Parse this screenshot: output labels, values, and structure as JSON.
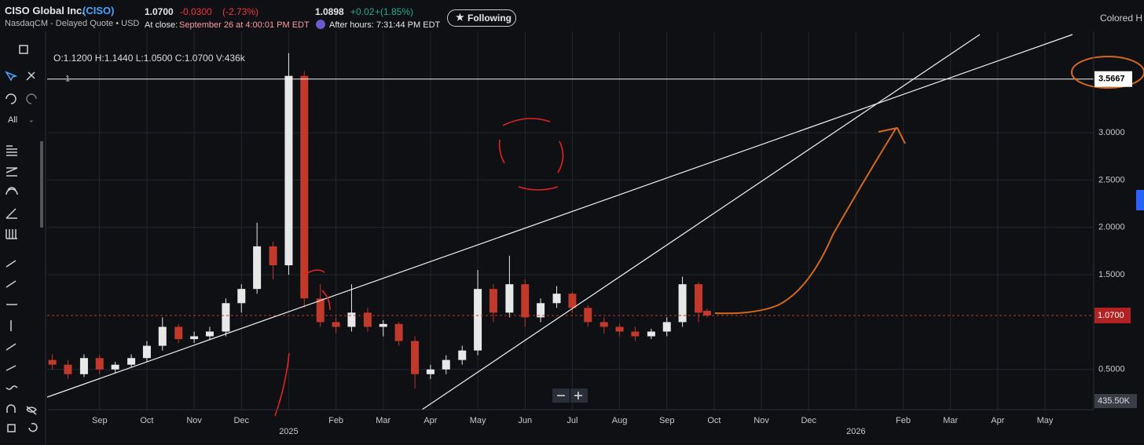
{
  "header": {
    "name": "CISO Global Inc.",
    "ticker": "(CISO)",
    "exchange": "NasdaqCM - Delayed Quote • USD",
    "price": "1.0700",
    "change": "-0.0300",
    "change_pct": "(-2.73%)",
    "close_label": "At close:",
    "close_time": "September 26 at 4:00:01 PM EDT",
    "ah_price": "1.0898",
    "ah_change": "+0.02",
    "ah_change_pct": "+(1.85%)",
    "ah_label": "After hours: 7:31:44 PM EDT",
    "follow": "Following",
    "colored": "Colored H"
  },
  "toolbar": {
    "all": "All"
  },
  "chart_data": {
    "type": "candlestick",
    "ohlc_label": "O:1.1200  H:1.1440  L:1.0500  C:1.0700  V:436k",
    "x": [
      -1,
      -0.67,
      -0.33,
      0,
      0.33,
      0.67,
      1,
      1.33,
      1.67,
      2,
      2.33,
      2.67,
      3,
      3.33,
      3.67,
      4,
      4.33,
      4.67,
      5,
      5.33,
      5.67,
      6,
      6.33,
      6.67,
      7,
      7.33,
      7.67,
      8,
      8.33,
      8.67,
      9,
      9.33,
      9.67,
      10,
      10.33,
      10.67,
      11,
      11.33,
      11.67,
      12,
      12.33,
      12.67,
      12.85
    ],
    "open": [
      0.6,
      0.55,
      0.45,
      0.62,
      0.5,
      0.55,
      0.62,
      0.75,
      0.95,
      0.82,
      0.85,
      0.9,
      1.2,
      1.35,
      1.8,
      1.6,
      3.6,
      1.25,
      1.0,
      0.95,
      1.1,
      0.95,
      0.98,
      0.8,
      0.45,
      0.5,
      0.6,
      0.7,
      1.35,
      1.1,
      1.4,
      1.05,
      1.2,
      1.3,
      1.15,
      1.0,
      0.95,
      0.9,
      0.85,
      0.9,
      1.0,
      1.4,
      1.12
    ],
    "high": [
      0.66,
      0.6,
      0.66,
      0.65,
      0.58,
      0.66,
      0.8,
      1.05,
      0.98,
      0.9,
      0.95,
      1.25,
      1.4,
      2.05,
      1.85,
      3.84,
      3.65,
      1.4,
      1.05,
      1.4,
      1.15,
      1.02,
      1.0,
      0.85,
      0.55,
      0.65,
      0.75,
      1.55,
      1.4,
      1.7,
      1.45,
      1.25,
      1.38,
      1.32,
      1.18,
      1.05,
      0.98,
      0.95,
      0.93,
      1.05,
      1.48,
      1.42,
      1.144
    ],
    "low": [
      0.5,
      0.4,
      0.42,
      0.45,
      0.46,
      0.52,
      0.58,
      0.7,
      0.78,
      0.78,
      0.82,
      0.85,
      1.1,
      1.3,
      1.45,
      1.5,
      1.15,
      0.95,
      0.88,
      0.9,
      0.9,
      0.85,
      0.75,
      0.3,
      0.4,
      0.45,
      0.55,
      0.65,
      1.0,
      1.05,
      0.95,
      1.0,
      1.15,
      1.1,
      0.95,
      0.88,
      0.85,
      0.8,
      0.82,
      0.85,
      0.95,
      1.0,
      1.05
    ],
    "close": [
      0.55,
      0.45,
      0.62,
      0.5,
      0.55,
      0.62,
      0.75,
      0.95,
      0.82,
      0.85,
      0.9,
      1.2,
      1.35,
      1.8,
      1.6,
      3.6,
      1.25,
      1.0,
      0.95,
      1.1,
      0.95,
      0.98,
      0.8,
      0.45,
      0.5,
      0.6,
      0.7,
      1.35,
      1.1,
      1.4,
      1.05,
      1.2,
      1.3,
      1.15,
      1.0,
      0.95,
      0.9,
      0.85,
      0.9,
      1.0,
      1.4,
      1.1,
      1.07
    ],
    "up_color": "#e8e8e8",
    "down_color": "#c0392b",
    "xlim": [
      -1.11,
      21.03
    ],
    "xticks": [
      {
        "value": 0,
        "label": "Sep"
      },
      {
        "value": 1,
        "label": "Oct"
      },
      {
        "value": 2,
        "label": "Nov"
      },
      {
        "value": 3,
        "label": "Dec"
      },
      {
        "value": 4,
        "label": "2025"
      },
      {
        "value": 5,
        "label": "Feb"
      },
      {
        "value": 6,
        "label": "Mar"
      },
      {
        "value": 7,
        "label": "Apr"
      },
      {
        "value": 8,
        "label": "May"
      },
      {
        "value": 9,
        "label": "Jun"
      },
      {
        "value": 10,
        "label": "Jul"
      },
      {
        "value": 11,
        "label": "Aug"
      },
      {
        "value": 12,
        "label": "Sep"
      },
      {
        "value": 13,
        "label": "Oct"
      },
      {
        "value": 14,
        "label": "Nov"
      },
      {
        "value": 15,
        "label": "Dec"
      },
      {
        "value": 16,
        "label": "2026"
      },
      {
        "value": 17,
        "label": "Feb"
      },
      {
        "value": 18,
        "label": "Mar"
      },
      {
        "value": 19,
        "label": "Apr"
      },
      {
        "value": 20,
        "label": "May"
      }
    ],
    "ylim": [
      0.075,
      4.07
    ],
    "yticks": [
      {
        "value": 0.5,
        "label": "0.5000"
      },
      {
        "value": 1.5,
        "label": "1.5000"
      },
      {
        "value": 2,
        "label": "2.0000"
      },
      {
        "value": 2.5,
        "label": "2.5000"
      },
      {
        "value": 3,
        "label": "3.0000"
      }
    ],
    "grid": true,
    "hline": {
      "value": 3.5667,
      "label": "3.5667",
      "tag": "1"
    },
    "last_price": {
      "value": 1.07,
      "label": "1.0700"
    },
    "volume_label": "435.50K"
  }
}
